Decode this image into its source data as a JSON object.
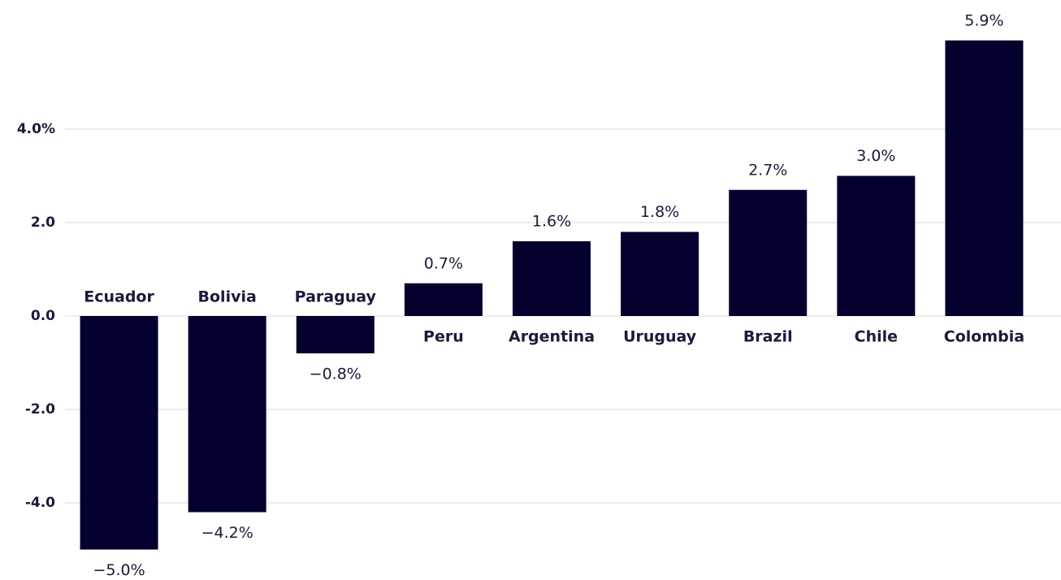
{
  "chart_data": {
    "type": "bar",
    "categories": [
      "Ecuador",
      "Bolivia",
      "Paraguay",
      "Peru",
      "Argentina",
      "Uruguay",
      "Brazil",
      "Chile",
      "Colombia"
    ],
    "values": [
      -5.0,
      -4.2,
      -0.8,
      0.7,
      1.6,
      1.8,
      2.7,
      3.0,
      5.9
    ],
    "value_labels": [
      "−5.0%",
      "−4.2%",
      "−0.8%",
      "0.7%",
      "1.6%",
      "1.8%",
      "2.7%",
      "3.0%",
      "5.9%"
    ],
    "color": "#03002e",
    "ylim": [
      -5.5,
      6.7
    ],
    "yticks": [
      {
        "value": -4,
        "label": "-4.0"
      },
      {
        "value": -2,
        "label": "-2.0"
      },
      {
        "value": 0,
        "label": "0.0"
      },
      {
        "value": 2,
        "label": "2.0"
      },
      {
        "value": 4,
        "label": "4.0%"
      }
    ],
    "grid": true
  }
}
